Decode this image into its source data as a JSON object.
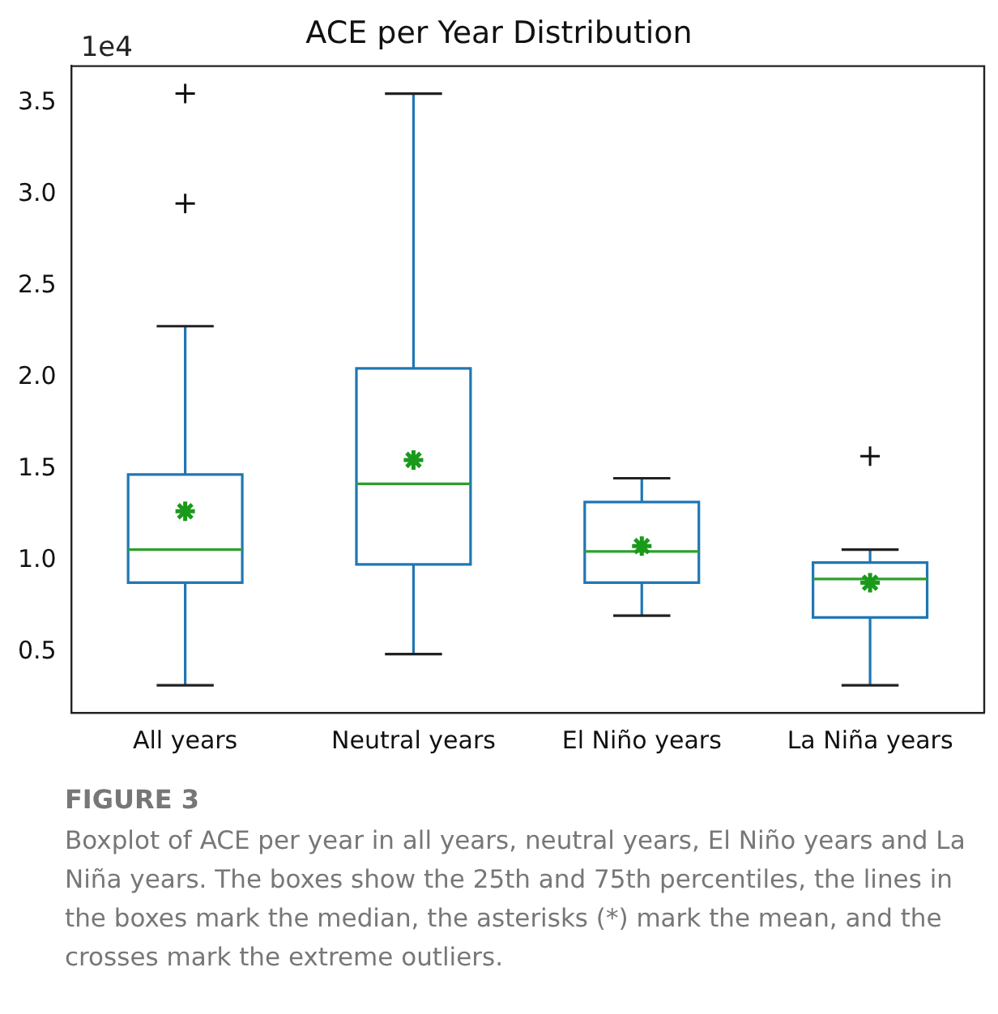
{
  "chart_data": {
    "type": "box",
    "title": "ACE per Year Distribution",
    "categories": [
      "All years",
      "Neutral years",
      "El Niño years",
      "La Niña years"
    ],
    "color": "#1f77b4",
    "boxes": [
      {
        "low": 0.32,
        "q1": 0.88,
        "median": 1.06,
        "q3": 1.47,
        "high": 2.28,
        "mean": 1.27,
        "outliers": [
          3.55,
          2.95
        ]
      },
      {
        "low": 0.49,
        "q1": 0.98,
        "median": 1.42,
        "q3": 2.05,
        "high": 3.55,
        "mean": 1.55
      },
      {
        "low": 0.7,
        "q1": 0.88,
        "median": 1.05,
        "q3": 1.32,
        "high": 1.45,
        "mean": 1.08
      },
      {
        "low": 0.32,
        "q1": 0.69,
        "median": 0.9,
        "q3": 0.99,
        "high": 1.06,
        "mean": 0.88,
        "outliers": [
          1.57
        ]
      }
    ],
    "ylim": [
      0.17,
      3.7
    ],
    "yticks": [
      0.5,
      {
        "value": 1,
        "label": "1.0"
      },
      1.5,
      {
        "value": 2,
        "label": "2.0"
      },
      2.5,
      {
        "value": 3,
        "label": "3.0"
      },
      3.5
    ],
    "grid": false,
    "legend": false,
    "annotations": [
      "1e4",
      "FIGURE 3",
      "Boxplot of ACE per year in all years, neutral years, El Niño years and La Niña years. The boxes show the 25th and 75th percentiles, the lines in the boxes mark the median, the asterisks (*) mark the mean, and the crosses mark the extreme outliers."
    ]
  }
}
